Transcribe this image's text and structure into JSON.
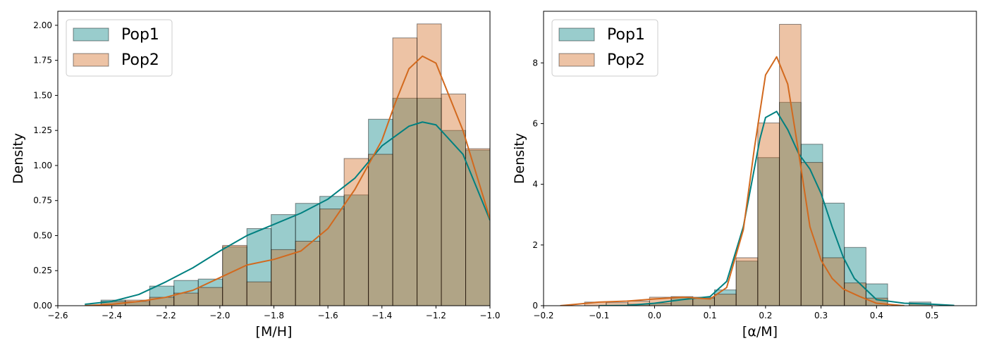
{
  "chart_data": [
    {
      "type": "histogram",
      "xlabel": "[M/H]",
      "ylabel": "Density",
      "xlim": [
        -2.6,
        -1.0
      ],
      "ylim": [
        0,
        2.1
      ],
      "xticks": [
        -2.6,
        -2.4,
        -2.2,
        -2.0,
        -1.8,
        -1.6,
        -1.4,
        -1.2,
        -1.0
      ],
      "xtick_labels": [
        "−2.6",
        "−2.4",
        "−2.2",
        "−2.0",
        "−1.8",
        "−1.6",
        "−1.4",
        "−1.2",
        "−1.0"
      ],
      "yticks": [
        0,
        0.25,
        0.5,
        0.75,
        1.0,
        1.25,
        1.5,
        1.75,
        2.0
      ],
      "ytick_labels": [
        "0.00",
        "0.25",
        "0.50",
        "0.75",
        "1.00",
        "1.25",
        "1.50",
        "1.75",
        "2.00"
      ],
      "legend": {
        "location": "upper-left",
        "entries": [
          "Pop1",
          "Pop2"
        ]
      },
      "bins": [
        -2.44,
        -2.35,
        -2.26,
        -2.17,
        -2.08,
        -1.99,
        -1.9,
        -1.81,
        -1.72,
        -1.63,
        -1.54,
        -1.45,
        -1.36,
        -1.27,
        -1.18,
        -1.09,
        -1.0
      ],
      "series": [
        {
          "name": "Pop1",
          "color": "#008080",
          "values": [
            0.04,
            0.03,
            0.14,
            0.18,
            0.19,
            0.42,
            0.55,
            0.65,
            0.73,
            0.78,
            0.79,
            1.33,
            1.48,
            1.48,
            1.25,
            1.11
          ],
          "kde": {
            "x": [
              -2.5,
              -2.4,
              -2.3,
              -2.2,
              -2.1,
              -2.0,
              -1.9,
              -1.8,
              -1.7,
              -1.6,
              -1.5,
              -1.4,
              -1.3,
              -1.25,
              -1.2,
              -1.1,
              -1.0
            ],
            "y": [
              0.01,
              0.03,
              0.08,
              0.17,
              0.27,
              0.39,
              0.5,
              0.58,
              0.66,
              0.76,
              0.91,
              1.14,
              1.28,
              1.31,
              1.29,
              1.08,
              0.61
            ]
          }
        },
        {
          "name": "Pop2",
          "color": "#d2691e",
          "values": [
            0.03,
            0.04,
            0.06,
            0.09,
            0.13,
            0.43,
            0.17,
            0.4,
            0.46,
            0.69,
            1.05,
            1.08,
            1.91,
            2.01,
            1.51,
            1.12
          ],
          "kde": {
            "x": [
              -2.5,
              -2.4,
              -2.3,
              -2.2,
              -2.1,
              -2.0,
              -1.9,
              -1.8,
              -1.7,
              -1.6,
              -1.5,
              -1.4,
              -1.35,
              -1.3,
              -1.25,
              -1.2,
              -1.1,
              -1.0
            ],
            "y": [
              0.0,
              0.01,
              0.03,
              0.06,
              0.11,
              0.2,
              0.29,
              0.33,
              0.39,
              0.55,
              0.83,
              1.18,
              1.45,
              1.69,
              1.78,
              1.73,
              1.25,
              0.62
            ]
          }
        }
      ]
    },
    {
      "type": "histogram",
      "xlabel": "[α/M]",
      "ylabel": "Density",
      "xlim": [
        -0.2,
        0.58
      ],
      "ylim": [
        0,
        9.7
      ],
      "xticks": [
        -0.2,
        -0.1,
        0.0,
        0.1,
        0.2,
        0.3,
        0.4,
        0.5
      ],
      "xtick_labels": [
        "−0.2",
        "−0.1",
        "0.0",
        "0.1",
        "0.2",
        "0.3",
        "0.4",
        "0.5"
      ],
      "yticks": [
        0,
        2,
        4,
        6,
        8
      ],
      "ytick_labels": [
        "0",
        "2",
        "4",
        "6",
        "8"
      ],
      "legend": {
        "location": "upper-left",
        "entries": [
          "Pop1",
          "Pop2"
        ]
      },
      "bins": [
        -0.165,
        -0.126,
        -0.087,
        -0.048,
        -0.009,
        0.03,
        0.069,
        0.108,
        0.147,
        0.186,
        0.225,
        0.264,
        0.303,
        0.342,
        0.381,
        0.42,
        0.459,
        0.498
      ],
      "series": [
        {
          "name": "Pop1",
          "color": "#008080",
          "values": [
            0,
            0,
            0,
            0.05,
            0.08,
            0.28,
            0.28,
            0.52,
            1.47,
            4.88,
            6.7,
            5.32,
            3.38,
            1.92,
            0.72,
            0,
            0.12
          ],
          "kde": {
            "x": [
              -0.1,
              -0.05,
              0.0,
              0.05,
              0.1,
              0.13,
              0.16,
              0.19,
              0.2,
              0.22,
              0.24,
              0.26,
              0.28,
              0.3,
              0.32,
              0.34,
              0.36,
              0.4,
              0.45,
              0.5,
              0.54
            ],
            "y": [
              0.0,
              0.01,
              0.08,
              0.2,
              0.3,
              0.8,
              2.6,
              5.5,
              6.2,
              6.4,
              5.8,
              5.0,
              4.5,
              3.7,
              2.6,
              1.6,
              0.9,
              0.2,
              0.08,
              0.05,
              0.01
            ]
          }
        },
        {
          "name": "Pop2",
          "color": "#d2691e",
          "values": [
            0,
            0.12,
            0.1,
            0.15,
            0.28,
            0.3,
            0.25,
            0.38,
            1.58,
            6.02,
            9.27,
            4.72,
            1.58,
            0.75,
            0.25,
            0,
            0.06
          ],
          "kde": {
            "x": [
              -0.17,
              -0.14,
              -0.1,
              -0.05,
              0.0,
              0.05,
              0.1,
              0.13,
              0.16,
              0.18,
              0.2,
              0.22,
              0.24,
              0.26,
              0.28,
              0.3,
              0.32,
              0.34,
              0.37,
              0.4,
              0.45
            ],
            "y": [
              0.0,
              0.05,
              0.12,
              0.15,
              0.22,
              0.28,
              0.22,
              0.6,
              2.5,
              5.2,
              7.6,
              8.2,
              7.3,
              5.0,
              2.6,
              1.5,
              0.9,
              0.55,
              0.3,
              0.08,
              0.0
            ]
          }
        }
      ]
    }
  ]
}
